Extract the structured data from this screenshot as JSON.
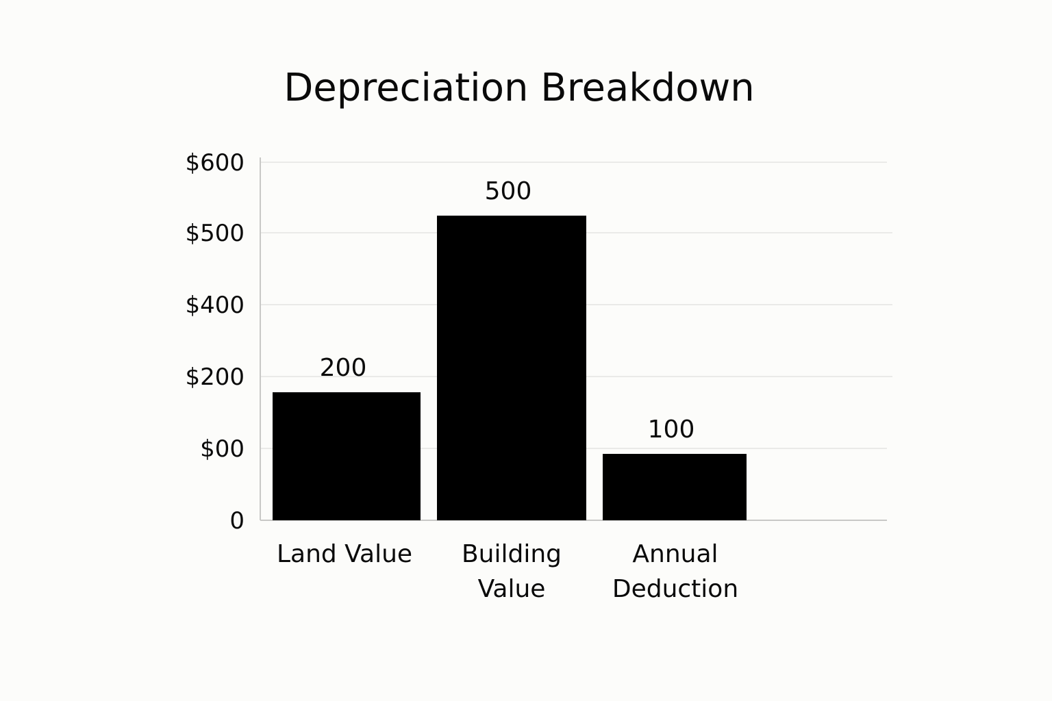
{
  "chart_data": {
    "type": "bar",
    "title": "Depreciation Breakdown",
    "xlabel": "",
    "ylabel": "",
    "categories": [
      [
        "Land Value"
      ],
      [
        "Building",
        "Value"
      ],
      [
        "Annual",
        "Deduction"
      ]
    ],
    "values": [
      200,
      500,
      100
    ],
    "data_labels": [
      "200",
      "500",
      "100"
    ],
    "y_tick_labels": [
      "0",
      "$00",
      "$200",
      "$400",
      "$500",
      "$600"
    ],
    "grid": true,
    "bar_color": "#000000"
  }
}
